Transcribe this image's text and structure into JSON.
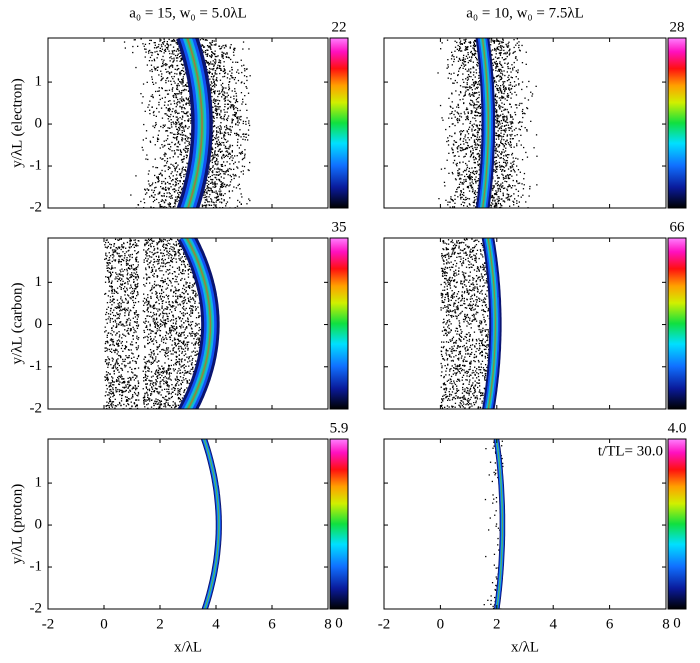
{
  "chart_data": [
    {
      "type": "heatmap",
      "title": "a₀ = 15, w₀ = 5.0λL",
      "ylabel": "y/λL (electron)",
      "xlim": [
        -2,
        8
      ],
      "ylim": [
        -2,
        2.05
      ],
      "yticks": [
        -2,
        -1,
        0,
        1
      ],
      "clim": [
        0,
        22
      ],
      "cticks": [
        22
      ]
    },
    {
      "type": "heatmap",
      "title": "a₀ = 10, w₀ = 7.5λL",
      "xlim": [
        -2,
        8
      ],
      "ylim": [
        -2,
        2.05
      ],
      "clim": [
        0,
        28
      ],
      "cticks": [
        28
      ]
    },
    {
      "type": "heatmap",
      "ylabel": "y/λL (carbon)",
      "xlim": [
        -2,
        8
      ],
      "ylim": [
        -2,
        2.05
      ],
      "yticks": [
        -2,
        -1,
        0,
        1
      ],
      "clim": [
        0,
        35
      ],
      "cticks": [
        35
      ]
    },
    {
      "type": "heatmap",
      "xlim": [
        -2,
        8
      ],
      "ylim": [
        -2,
        2.05
      ],
      "clim": [
        0,
        66
      ],
      "cticks": [
        66
      ]
    },
    {
      "type": "heatmap",
      "ylabel": "y/λL (proton)",
      "xlabel": "x/λL",
      "xlim": [
        -2,
        8
      ],
      "ylim": [
        -2,
        2.05
      ],
      "xticks": [
        -2,
        0,
        2,
        4,
        6,
        8
      ],
      "yticks": [
        -2,
        -1,
        0,
        1
      ],
      "clim": [
        0,
        5.9
      ],
      "cticks": [
        0,
        5.9
      ]
    },
    {
      "type": "heatmap",
      "xlabel": "x/λL",
      "xlim": [
        -2,
        8
      ],
      "ylim": [
        -2,
        2.05
      ],
      "xticks": [
        -2,
        0,
        2,
        4,
        6,
        8
      ],
      "clim": [
        0,
        4
      ],
      "cticks": [
        0,
        {
          "value": 4,
          "label": "4.0"
        }
      ],
      "annotation": "t/TL= 30.0"
    }
  ]
}
